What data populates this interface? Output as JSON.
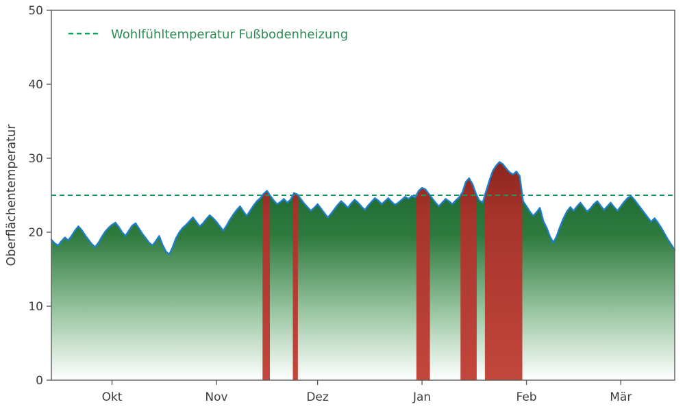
{
  "page": {
    "background": "#ffffff"
  },
  "chart_data": {
    "type": "area",
    "title": "",
    "xlabel": "",
    "ylabel": "Oberflächentemperatur",
    "ylim": [
      0,
      50
    ],
    "grid": false,
    "y_ticks": [
      0,
      10,
      20,
      30,
      40,
      50
    ],
    "x_ticks": [
      {
        "label": "Okt",
        "day": 18
      },
      {
        "label": "Nov",
        "day": 49
      },
      {
        "label": "Dez",
        "day": 79
      },
      {
        "label": "Jan",
        "day": 110
      },
      {
        "label": "Feb",
        "day": 141
      },
      {
        "label": "Mär",
        "day": 169
      }
    ],
    "legend": {
      "label": "Wohlfühltemperatur Fußbodenheizung",
      "position": "upper left",
      "text_color": "#2e8b57"
    },
    "threshold": {
      "value": 25,
      "style": "dashed",
      "color": "#0ca05e"
    },
    "series": [
      {
        "name": "Oberflächentemperatur",
        "color": "#1f7ec8",
        "x_unit": "day_index",
        "values": [
          19.0,
          18.5,
          18.2,
          18.8,
          19.3,
          18.9,
          19.5,
          20.2,
          20.8,
          20.3,
          19.6,
          19.0,
          18.4,
          18.0,
          18.6,
          19.4,
          20.1,
          20.6,
          21.0,
          21.3,
          20.7,
          20.0,
          19.5,
          20.2,
          20.9,
          21.2,
          20.5,
          19.8,
          19.2,
          18.6,
          18.2,
          18.8,
          19.5,
          18.3,
          17.4,
          17.0,
          18.0,
          19.2,
          20.0,
          20.6,
          21.0,
          21.5,
          22.0,
          21.4,
          20.8,
          21.2,
          21.8,
          22.3,
          21.9,
          21.4,
          20.8,
          20.2,
          20.9,
          21.7,
          22.4,
          23.0,
          23.5,
          22.8,
          22.2,
          22.9,
          23.6,
          24.2,
          24.6,
          25.2,
          25.6,
          24.9,
          24.3,
          23.8,
          24.1,
          24.5,
          24.0,
          24.4,
          25.3,
          25.1,
          24.5,
          23.9,
          23.4,
          22.9,
          23.3,
          23.8,
          23.2,
          22.6,
          22.0,
          22.5,
          23.1,
          23.7,
          24.2,
          23.8,
          23.3,
          23.9,
          24.4,
          24.0,
          23.5,
          23.0,
          23.6,
          24.1,
          24.6,
          24.3,
          23.8,
          24.2,
          24.6,
          24.1,
          23.7,
          24.0,
          24.4,
          24.8,
          24.5,
          24.9,
          24.7,
          25.6,
          26.0,
          25.8,
          25.2,
          24.6,
          24.0,
          23.5,
          24.0,
          24.5,
          24.2,
          23.8,
          24.3,
          24.7,
          25.4,
          26.8,
          27.3,
          26.5,
          25.2,
          24.3,
          24.0,
          25.5,
          27.0,
          28.3,
          29.0,
          29.5,
          29.2,
          28.6,
          28.1,
          27.8,
          28.2,
          27.6,
          24.2,
          23.5,
          22.8,
          22.2,
          22.7,
          23.3,
          21.5,
          20.6,
          19.4,
          18.6,
          19.5,
          20.8,
          21.9,
          22.8,
          23.4,
          22.9,
          23.5,
          24.0,
          23.4,
          22.8,
          23.2,
          23.8,
          24.2,
          23.6,
          23.0,
          23.5,
          24.0,
          23.4,
          22.9,
          23.5,
          24.1,
          24.6,
          24.9,
          24.4,
          23.8,
          23.2,
          22.6,
          22.0,
          21.4,
          21.9,
          21.3,
          20.6,
          19.8,
          19.0,
          18.3,
          17.6
        ]
      }
    ],
    "area_gradient": {
      "stops": [
        [
          "0%",
          "#14602a"
        ],
        [
          "35%",
          "#2e7a3e"
        ],
        [
          "70%",
          "#9cc7a4"
        ],
        [
          "100%",
          "#ffffff"
        ]
      ]
    },
    "overheat_gradient": {
      "stops": [
        [
          "0%",
          "#8a241e"
        ],
        [
          "25%",
          "#a5342b"
        ],
        [
          "100%",
          "#c2463c"
        ]
      ]
    },
    "axis_color": "#5b5b5b",
    "text_color": "#3c3c3c"
  }
}
